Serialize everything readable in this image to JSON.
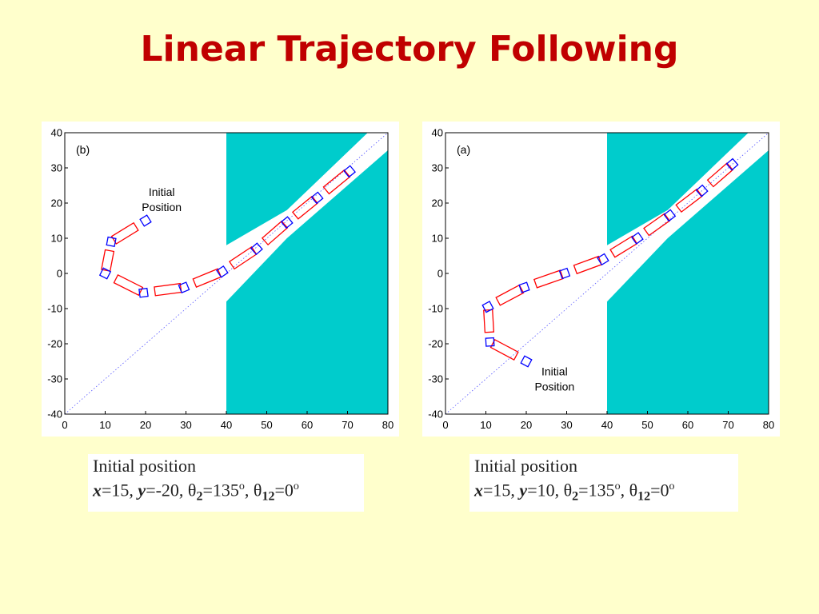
{
  "slide": {
    "title": "Linear Trajectory Following"
  },
  "colors": {
    "title": "#c00000",
    "obstacle": "#00cccc",
    "link": "#ff0000",
    "joint": "#0000ff",
    "reference": "#5555ff"
  },
  "chart_data": [
    {
      "type": "scatter",
      "panel_label": "(b)",
      "xlim": [
        0,
        80
      ],
      "ylim": [
        -40,
        40
      ],
      "xticks": [
        0,
        10,
        20,
        30,
        40,
        50,
        60,
        70,
        80
      ],
      "yticks": [
        -40,
        -30,
        -20,
        -10,
        0,
        10,
        20,
        30,
        40
      ],
      "grid": false,
      "annotation": {
        "line1": "Initial",
        "line2": "Position",
        "at": [
          24,
          22
        ]
      },
      "reference_line": {
        "from": [
          0,
          -40
        ],
        "to": [
          80,
          40
        ],
        "style": "dotted"
      },
      "obstacles": [
        [
          [
            40,
            40
          ],
          [
            40,
            8
          ],
          [
            55,
            18
          ],
          [
            75,
            40
          ]
        ],
        [
          [
            40,
            -40
          ],
          [
            40,
            -8
          ],
          [
            55,
            10
          ],
          [
            80,
            35
          ],
          [
            80,
            -40
          ]
        ]
      ],
      "series": [
        {
          "values": [
            [
              20,
              15
            ],
            [
              11.5,
              9
            ],
            [
              10,
              0
            ],
            [
              19.5,
              -5.5
            ],
            [
              29.5,
              -4
            ],
            [
              39,
              0.5
            ],
            [
              47.5,
              7
            ],
            [
              55,
              14.5
            ],
            [
              62.5,
              21.5
            ],
            [
              70.5,
              29
            ]
          ]
        }
      ]
    },
    {
      "type": "scatter",
      "panel_label": "(a)",
      "xlim": [
        0,
        80
      ],
      "ylim": [
        -40,
        40
      ],
      "xticks": [
        0,
        10,
        20,
        30,
        40,
        50,
        60,
        70,
        80
      ],
      "yticks": [
        -40,
        -30,
        -20,
        -10,
        0,
        10,
        20,
        30,
        40
      ],
      "grid": false,
      "annotation": {
        "line1": "Initial",
        "line2": "Position",
        "at": [
          27,
          -29
        ]
      },
      "reference_line": {
        "from": [
          0,
          -40
        ],
        "to": [
          80,
          40
        ],
        "style": "dotted"
      },
      "obstacles": [
        [
          [
            40,
            40
          ],
          [
            40,
            8
          ],
          [
            55,
            18
          ],
          [
            75,
            40
          ]
        ],
        [
          [
            40,
            -40
          ],
          [
            40,
            -8
          ],
          [
            55,
            10
          ],
          [
            80,
            35
          ],
          [
            80,
            -40
          ]
        ]
      ],
      "series": [
        {
          "values": [
            [
              20,
              -25
            ],
            [
              11,
              -19.5
            ],
            [
              10.5,
              -9.5
            ],
            [
              19.5,
              -4
            ],
            [
              29.5,
              0
            ],
            [
              39,
              4
            ],
            [
              47.5,
              10
            ],
            [
              55.5,
              16.5
            ],
            [
              63.5,
              23.5
            ],
            [
              71,
              31
            ]
          ]
        }
      ]
    }
  ],
  "captions": [
    {
      "title": "Initial position",
      "x_label": "x",
      "x_value": "=15, ",
      "y_label": "y",
      "y_value": "=-20, ",
      "t2_symbol": "θ",
      "t2_sub": "2",
      "t2_value": "=135",
      "deg1": "o",
      "sep": ", ",
      "t12_symbol": "θ",
      "t12_sub": "12",
      "t12_value": "=0",
      "deg2": "o"
    },
    {
      "title": "Initial position",
      "x_label": "x",
      "x_value": "=15, ",
      "y_label": "y",
      "y_value": "=10, ",
      "t2_symbol": "θ",
      "t2_sub": "2",
      "t2_value": "=135",
      "deg1": "o",
      "sep": ", ",
      "t12_symbol": "θ",
      "t12_sub": "12",
      "t12_value": "=0",
      "deg2": "o"
    }
  ]
}
